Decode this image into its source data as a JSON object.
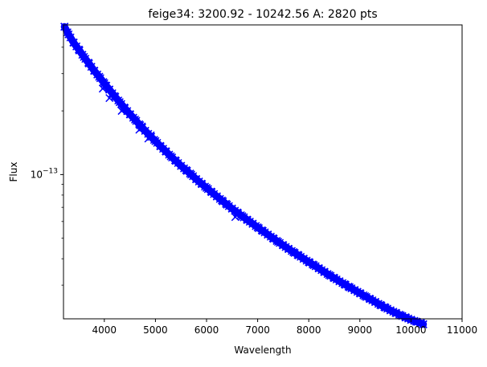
{
  "chart_data": {
    "type": "scatter",
    "title": "feige34: 3200.92 - 10242.56 A: 2820 pts",
    "xlabel": "Wavelength",
    "ylabel": "Flux",
    "xlim": [
      3200.92,
      11000
    ],
    "ylim": [
      2.08e-14,
      5.1e-13
    ],
    "yscale": "log",
    "grid": false,
    "marker": "x",
    "color": "#0000ff",
    "x_ticks": [
      {
        "value": 4000,
        "label": "4000"
      },
      {
        "value": 5000,
        "label": "5000"
      },
      {
        "value": 6000,
        "label": "6000"
      },
      {
        "value": 7000,
        "label": "7000"
      },
      {
        "value": 8000,
        "label": "8000"
      },
      {
        "value": 9000,
        "label": "9000"
      },
      {
        "value": 10000,
        "label": "10000"
      },
      {
        "value": 11000,
        "label": "11000"
      }
    ],
    "y_major_ticks": [
      {
        "value": 1e-13,
        "base": "10",
        "exponent": "−13"
      }
    ],
    "y_minor_ticks": [
      3e-14,
      4e-14,
      5e-14,
      6e-14,
      7e-14,
      8e-14,
      9e-14,
      2e-13,
      3e-13,
      4e-13
    ],
    "series": [
      {
        "x": [
          3220,
          3300,
          3400,
          3500,
          3600,
          3700,
          3800,
          3900,
          4000,
          4100,
          4200,
          4300,
          4400,
          4500,
          4600,
          4700,
          4800,
          4900,
          5000,
          5100,
          5200,
          5300,
          5400,
          5500,
          5600,
          5700,
          5800,
          5900,
          6000,
          6100,
          6200,
          6300,
          6400,
          6500,
          6600,
          6700,
          6800,
          6900,
          7000,
          7100,
          7200,
          7300,
          7400,
          7500,
          7600,
          7700,
          7800,
          7900,
          8000,
          8100,
          8200,
          8300,
          8400,
          8500,
          8600,
          8700,
          8800,
          8900,
          9000,
          9100,
          9200,
          9300,
          9400,
          9500,
          9600,
          9700,
          9800,
          9900,
          10000,
          10100,
          10200,
          10240
        ],
        "y": [
          5e-13,
          4.6e-13,
          4.2e-13,
          3.9e-13,
          3.6e-13,
          3.35e-13,
          3.1e-13,
          2.9e-13,
          2.7e-13,
          2.52e-13,
          2.35e-13,
          2.2e-13,
          2.06e-13,
          1.93e-13,
          1.82e-13,
          1.71e-13,
          1.61e-13,
          1.52e-13,
          1.44e-13,
          1.36e-13,
          1.29e-13,
          1.22e-13,
          1.16e-13,
          1.1e-13,
          1.05e-13,
          1e-13,
          9.5e-14,
          9.06e-14,
          8.65e-14,
          8.26e-14,
          7.89e-14,
          7.54e-14,
          7.21e-14,
          6.9e-14,
          6.62e-14,
          6.35e-14,
          6.1e-14,
          5.86e-14,
          5.63e-14,
          5.41e-14,
          5.2e-14,
          5e-14,
          4.81e-14,
          4.63e-14,
          4.46e-14,
          4.3e-14,
          4.15e-14,
          4e-14,
          3.86e-14,
          3.73e-14,
          3.6e-14,
          3.47e-14,
          3.35e-14,
          3.24e-14,
          3.13e-14,
          3.03e-14,
          2.93e-14,
          2.84e-14,
          2.75e-14,
          2.66e-14,
          2.58e-14,
          2.5e-14,
          2.42e-14,
          2.35e-14,
          2.28e-14,
          2.22e-14,
          2.16e-14,
          2.11e-14,
          2.06e-14,
          2.02e-14,
          1.98e-14,
          1.96e-14
        ]
      }
    ],
    "absorption_dips": [
      {
        "x": 3970,
        "y": 2.55e-13
      },
      {
        "x": 4101,
        "y": 2.3e-13
      },
      {
        "x": 4340,
        "y": 2e-13
      },
      {
        "x": 4686,
        "y": 1.63e-13
      },
      {
        "x": 4861,
        "y": 1.48e-13
      },
      {
        "x": 6563,
        "y": 6.3e-14
      }
    ]
  }
}
